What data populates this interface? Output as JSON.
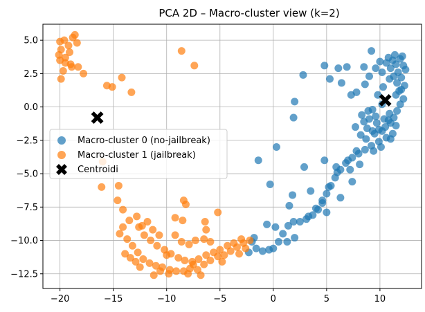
{
  "chart_data": {
    "type": "scatter",
    "title": "PCA 2D – Macro-cluster view (k=2)",
    "xlabel": "",
    "ylabel": "",
    "xlim": [
      -21.6,
      13.9
    ],
    "ylim": [
      -13.6,
      6.2
    ],
    "x_ticks": [
      -20,
      -15,
      -10,
      -5,
      0,
      5,
      10
    ],
    "y_ticks": [
      5.0,
      2.5,
      0.0,
      -2.5,
      -5.0,
      -7.5,
      -10.0,
      -12.5
    ],
    "x_tick_labels": [
      "−20",
      "−15",
      "−10",
      "−5",
      "0",
      "5",
      "10"
    ],
    "y_tick_labels": [
      "5.0",
      "2.5",
      "0.0",
      "−2.5",
      "−5.0",
      "−7.5",
      "−10.0",
      "−12.5"
    ],
    "grid": true,
    "legend_position": "center-left",
    "series": [
      {
        "name": "Macro-cluster 0 (no-jailbreak)",
        "color": "#1f77b4",
        "marker": "circle",
        "points": [
          [
            10.8,
            3.7
          ],
          [
            11.2,
            3.5
          ],
          [
            11.5,
            3.2
          ],
          [
            11.9,
            3.6
          ],
          [
            12.2,
            3.1
          ],
          [
            12.4,
            2.8
          ],
          [
            11.7,
            2.6
          ],
          [
            11.0,
            2.9
          ],
          [
            10.6,
            3.3
          ],
          [
            12.0,
            2.2
          ],
          [
            11.6,
            1.8
          ],
          [
            12.3,
            1.6
          ],
          [
            11.3,
            2.3
          ],
          [
            10.2,
            2.6
          ],
          [
            9.6,
            2.9
          ],
          [
            10.0,
            3.4
          ],
          [
            11.4,
            3.9
          ],
          [
            12.1,
            3.8
          ],
          [
            10.9,
            2.1
          ],
          [
            11.8,
            1.2
          ],
          [
            12.2,
            0.6
          ],
          [
            11.9,
            0.2
          ],
          [
            11.6,
            -0.3
          ],
          [
            11.3,
            -0.8
          ],
          [
            11.0,
            -1.2
          ],
          [
            10.5,
            -1.5
          ],
          [
            9.9,
            -1.7
          ],
          [
            9.3,
            -1.8
          ],
          [
            8.8,
            -1.6
          ],
          [
            8.5,
            -1.1
          ],
          [
            8.3,
            -0.6
          ],
          [
            9.0,
            -0.9
          ],
          [
            9.7,
            -1.2
          ],
          [
            10.4,
            -0.9
          ],
          [
            10.9,
            -0.5
          ],
          [
            11.5,
            -1.4
          ],
          [
            11.2,
            -2.0
          ],
          [
            10.6,
            -2.3
          ],
          [
            9.9,
            -2.6
          ],
          [
            9.2,
            -2.9
          ],
          [
            8.6,
            -3.2
          ],
          [
            8.0,
            -3.5
          ],
          [
            7.4,
            -3.8
          ],
          [
            6.8,
            -4.2
          ],
          [
            6.3,
            -4.7
          ],
          [
            5.8,
            -5.3
          ],
          [
            5.4,
            -5.9
          ],
          [
            5.0,
            -6.5
          ],
          [
            4.6,
            -7.2
          ],
          [
            4.2,
            -7.7
          ],
          [
            3.7,
            -8.1
          ],
          [
            3.1,
            -8.4
          ],
          [
            2.5,
            -8.6
          ],
          [
            1.9,
            -8.6
          ],
          [
            1.4,
            -8.9
          ],
          [
            0.9,
            -9.5
          ],
          [
            0.5,
            -10.1
          ],
          [
            0.0,
            -10.6
          ],
          [
            -0.4,
            -10.7
          ],
          [
            -1.0,
            -10.8
          ],
          [
            -1.6,
            -10.6
          ],
          [
            -2.0,
            -10.1
          ],
          [
            -0.6,
            -8.8
          ],
          [
            2.0,
            -9.8
          ],
          [
            3.3,
            -8.2
          ],
          [
            4.6,
            -7.0
          ],
          [
            5.2,
            -6.0
          ],
          [
            6.0,
            -4.9
          ],
          [
            7.0,
            -4.0
          ],
          [
            7.8,
            -3.3
          ],
          [
            8.7,
            -2.4
          ],
          [
            9.5,
            -2.0
          ],
          [
            10.2,
            -1.8
          ],
          [
            11.0,
            -2.4
          ],
          [
            8.9,
            -0.3
          ],
          [
            9.8,
            0.9
          ],
          [
            10.3,
            1.5
          ],
          [
            9.0,
            2.3
          ],
          [
            8.6,
            1.7
          ],
          [
            7.8,
            1.1
          ],
          [
            7.3,
            0.9
          ],
          [
            6.4,
            1.8
          ],
          [
            5.3,
            2.1
          ],
          [
            4.8,
            3.1
          ],
          [
            6.1,
            2.9
          ],
          [
            6.9,
            3.0
          ],
          [
            8.5,
            3.0
          ],
          [
            9.2,
            4.2
          ],
          [
            2.0,
            0.4
          ],
          [
            2.8,
            2.4
          ],
          [
            1.9,
            -0.8
          ],
          [
            0.3,
            -3.0
          ],
          [
            -1.4,
            -4.0
          ],
          [
            -0.3,
            -5.8
          ],
          [
            1.8,
            -6.6
          ],
          [
            2.9,
            -4.5
          ],
          [
            4.8,
            -4.0
          ],
          [
            5.9,
            -4.5
          ],
          [
            7.2,
            -4.7
          ],
          [
            3.5,
            -6.3
          ],
          [
            1.5,
            -7.4
          ],
          [
            4.0,
            -7.6
          ],
          [
            5.0,
            -7.9
          ],
          [
            6.3,
            -6.8
          ],
          [
            7.4,
            -5.6
          ],
          [
            8.1,
            -4.3
          ],
          [
            9.4,
            -3.3
          ],
          [
            10.1,
            -3.0
          ],
          [
            10.8,
            -1.0
          ],
          [
            11.5,
            0.9
          ],
          [
            12.0,
            1.3
          ],
          [
            10.2,
            0.2
          ],
          [
            9.3,
            -0.2
          ],
          [
            8.2,
            -2.1
          ],
          [
            7.7,
            -1.5
          ],
          [
            9.6,
            -0.7
          ],
          [
            0.2,
            -9.0
          ],
          [
            -1.8,
            -9.8
          ],
          [
            -2.3,
            -10.9
          ],
          [
            1.3,
            -10.1
          ]
        ]
      },
      {
        "name": "Macro-cluster 1 (jailbreak)",
        "color": "#ff7f0e",
        "marker": "circle",
        "points": [
          [
            -20.0,
            4.9
          ],
          [
            -19.6,
            5.0
          ],
          [
            -19.2,
            4.6
          ],
          [
            -19.9,
            4.3
          ],
          [
            -20.1,
            3.9
          ],
          [
            -19.5,
            3.7
          ],
          [
            -19.1,
            4.1
          ],
          [
            -18.8,
            5.2
          ],
          [
            -18.6,
            5.4
          ],
          [
            -18.4,
            4.8
          ],
          [
            -19.0,
            3.2
          ],
          [
            -19.5,
            3.3
          ],
          [
            -19.7,
            2.7
          ],
          [
            -19.9,
            2.1
          ],
          [
            -20.0,
            3.5
          ],
          [
            -18.9,
            3.0
          ],
          [
            -18.3,
            3.0
          ],
          [
            -17.8,
            2.5
          ],
          [
            -15.6,
            1.6
          ],
          [
            -15.1,
            1.5
          ],
          [
            -14.2,
            2.2
          ],
          [
            -13.3,
            1.1
          ],
          [
            -8.6,
            4.2
          ],
          [
            -7.4,
            3.1
          ],
          [
            -16.0,
            -4.1
          ],
          [
            -16.1,
            -6.0
          ],
          [
            -14.5,
            -5.9
          ],
          [
            -14.6,
            -7.0
          ],
          [
            -14.1,
            -7.7
          ],
          [
            -13.5,
            -8.5
          ],
          [
            -12.8,
            -8.2
          ],
          [
            -12.3,
            -8.9
          ],
          [
            -11.8,
            -8.6
          ],
          [
            -14.1,
            -9.0
          ],
          [
            -14.4,
            -9.5
          ],
          [
            -13.7,
            -9.9
          ],
          [
            -13.2,
            -10.4
          ],
          [
            -12.7,
            -10.9
          ],
          [
            -12.2,
            -11.4
          ],
          [
            -11.6,
            -11.7
          ],
          [
            -11.0,
            -11.9
          ],
          [
            -10.4,
            -12.0
          ],
          [
            -9.7,
            -12.2
          ],
          [
            -9.1,
            -12.3
          ],
          [
            -8.4,
            -12.3
          ],
          [
            -7.8,
            -12.1
          ],
          [
            -7.1,
            -12.2
          ],
          [
            -6.5,
            -11.8
          ],
          [
            -5.9,
            -11.5
          ],
          [
            -5.2,
            -11.2
          ],
          [
            -4.6,
            -11.1
          ],
          [
            -4.0,
            -10.8
          ],
          [
            -3.4,
            -10.5
          ],
          [
            -2.8,
            -10.2
          ],
          [
            -2.2,
            -10.0
          ],
          [
            -12.1,
            -9.6
          ],
          [
            -11.5,
            -10.0
          ],
          [
            -10.9,
            -10.4
          ],
          [
            -10.2,
            -10.7
          ],
          [
            -9.6,
            -11.0
          ],
          [
            -8.9,
            -11.3
          ],
          [
            -8.3,
            -11.5
          ],
          [
            -7.6,
            -11.6
          ],
          [
            -7.0,
            -11.4
          ],
          [
            -6.3,
            -11.1
          ],
          [
            -5.6,
            -10.9
          ],
          [
            -5.0,
            -10.7
          ],
          [
            -4.3,
            -10.4
          ],
          [
            -3.7,
            -10.2
          ],
          [
            -3.0,
            -9.9
          ],
          [
            -9.2,
            -9.6
          ],
          [
            -8.6,
            -10.1
          ],
          [
            -7.9,
            -10.3
          ],
          [
            -7.3,
            -10.0
          ],
          [
            -6.5,
            -9.9
          ],
          [
            -5.9,
            -10.1
          ],
          [
            -8.4,
            -7.0
          ],
          [
            -8.2,
            -7.3
          ],
          [
            -6.4,
            -8.6
          ],
          [
            -5.2,
            -7.9
          ],
          [
            -9.2,
            -8.3
          ],
          [
            -8.5,
            -8.5
          ],
          [
            -6.3,
            -9.2
          ],
          [
            -12.5,
            -12.0
          ],
          [
            -11.2,
            -12.6
          ],
          [
            -10.6,
            -12.3
          ],
          [
            -9.8,
            -12.5
          ],
          [
            -8.0,
            -12.5
          ],
          [
            -6.8,
            -12.6
          ],
          [
            -13.9,
            -11.0
          ],
          [
            -13.4,
            -11.3
          ],
          [
            -12.9,
            -11.6
          ],
          [
            -10.0,
            -11.1
          ],
          [
            -7.5,
            -11.8
          ],
          [
            -4.8,
            -11.6
          ],
          [
            -3.2,
            -11.0
          ],
          [
            -2.6,
            -10.6
          ],
          [
            -11.3,
            -9.2
          ],
          [
            -10.7,
            -9.6
          ],
          [
            -12.6,
            -9.0
          ]
        ]
      }
    ],
    "centroids": {
      "name": "Centroidi",
      "color": "#000000",
      "marker": "X",
      "points": [
        [
          -16.5,
          -0.8
        ],
        [
          10.5,
          0.5
        ]
      ]
    }
  }
}
